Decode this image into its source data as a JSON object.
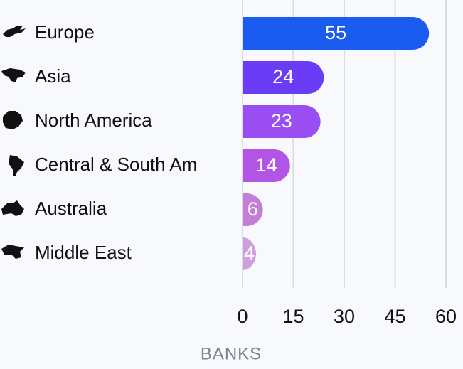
{
  "chart_data": {
    "type": "hbar",
    "categories": [
      "Europe",
      "Asia",
      "North America",
      "Central & South Am",
      "Australia",
      "Middle East"
    ],
    "values": [
      55,
      24,
      23,
      14,
      6,
      4
    ],
    "colors": [
      "#1a5cf0",
      "#6a3cf5",
      "#9a4ef2",
      "#b254e6",
      "#c27ed9",
      "#cf9fe0"
    ],
    "xlim": [
      0,
      60
    ],
    "xticks": [
      0,
      15,
      30,
      45,
      60
    ],
    "xlabel": "BANKS",
    "grid": true
  }
}
